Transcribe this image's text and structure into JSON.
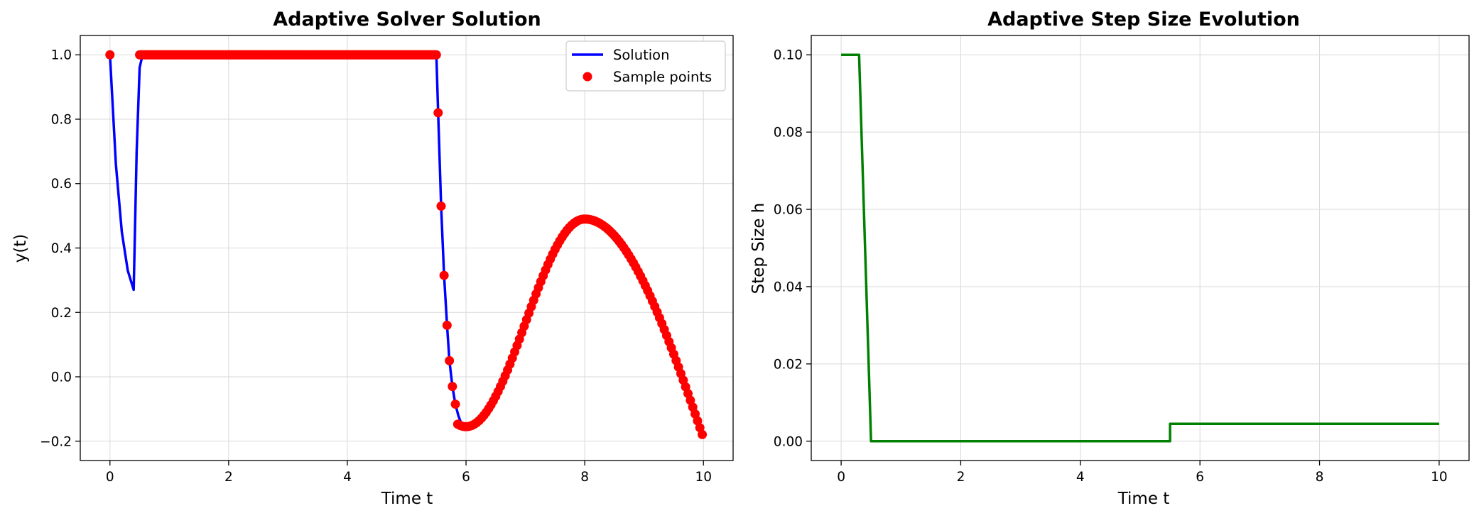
{
  "chart_data": [
    {
      "type": "line",
      "title": "Adaptive Solver Solution",
      "xlabel": "Time t",
      "ylabel": "y(t)",
      "xlim": [
        -0.5,
        10.5
      ],
      "ylim": [
        -0.26,
        1.06
      ],
      "xticks": [
        0,
        2,
        4,
        6,
        8,
        10
      ],
      "yticks": [
        -0.2,
        0.0,
        0.2,
        0.4,
        0.6,
        0.8,
        1.0
      ],
      "ytick_labels": [
        "−0.2",
        "0.0",
        "0.2",
        "0.4",
        "0.6",
        "0.8",
        "1.0"
      ],
      "grid": true,
      "legend": "top-right",
      "series": [
        {
          "name": "Solution",
          "kind": "line",
          "color": "#0000ff",
          "x": [
            0,
            0.1,
            0.2,
            0.3,
            0.4,
            0.45,
            0.5,
            0.55,
            1.0,
            2.0,
            3.0,
            4.0,
            5.0,
            5.5,
            5.53,
            5.58,
            5.63,
            5.68,
            5.72,
            5.77,
            5.82,
            5.87,
            5.92,
            5.96,
            6.0
          ],
          "y": [
            1.0,
            0.66,
            0.45,
            0.33,
            0.27,
            0.7,
            0.96,
            1.0,
            1.0,
            1.0,
            1.0,
            1.0,
            1.0,
            1.0,
            0.82,
            0.53,
            0.315,
            0.16,
            0.05,
            -0.03,
            -0.085,
            -0.12,
            -0.145,
            -0.155,
            -0.155
          ]
        },
        {
          "name": "Sample points",
          "kind": "scatter",
          "color": "#ff0000",
          "note_points": "dense samples; first point at t=0 then continuous sampling from t=0.5"
        }
      ],
      "sample_points": {
        "x_single": [
          0
        ],
        "y_single": [
          1.0
        ],
        "flat_range": [
          0.5,
          5.5
        ],
        "flat_value": 1.0,
        "drop_x": [
          5.53,
          5.58,
          5.63,
          5.68,
          5.72,
          5.77,
          5.82
        ],
        "drop_y": [
          0.82,
          0.53,
          0.315,
          0.16,
          0.05,
          -0.03,
          -0.085
        ],
        "wave_range": [
          5.86,
          10.0
        ],
        "wave_min": {
          "x": 6.0,
          "y": -0.155
        },
        "wave_max": {
          "x": 8.0,
          "y": 0.49
        },
        "wave_end": {
          "x": 10.0,
          "y": -0.19
        }
      }
    },
    {
      "type": "line",
      "title": "Adaptive Step Size Evolution",
      "xlabel": "Time t",
      "ylabel": "Step Size h",
      "xlim": [
        -0.5,
        10.5
      ],
      "ylim": [
        -0.005,
        0.105
      ],
      "xticks": [
        0,
        2,
        4,
        6,
        8,
        10
      ],
      "yticks": [
        0.0,
        0.02,
        0.04,
        0.06,
        0.08,
        0.1
      ],
      "ytick_labels": [
        "0.00",
        "0.02",
        "0.04",
        "0.06",
        "0.08",
        "0.10"
      ],
      "grid": true,
      "series": [
        {
          "kind": "line",
          "color": "#008000",
          "x": [
            0,
            0.3,
            0.5,
            5.5,
            5.5,
            10.0
          ],
          "y": [
            0.1,
            0.1,
            0.0,
            0.0,
            0.0045,
            0.0045
          ]
        }
      ]
    }
  ],
  "colors": {
    "solution": "#0000ff",
    "samples": "#ff0000",
    "step": "#008000",
    "grid": "#d9d9d9"
  }
}
